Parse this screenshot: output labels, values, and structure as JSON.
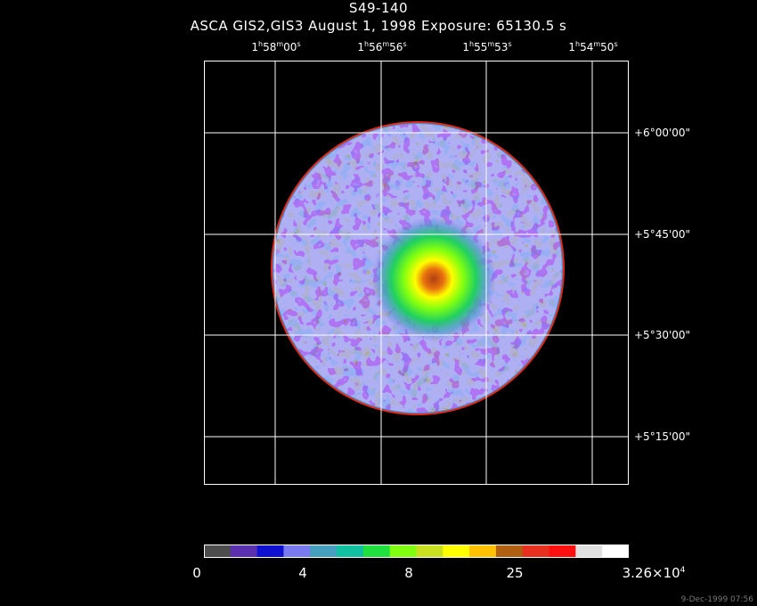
{
  "title": "S49-140",
  "subtitle": "ASCA GIS2,GIS3 August 1, 1998 Exposure: 65130.5 s",
  "ra_labels": [
    {
      "h": "1",
      "hs": "h",
      "m": "58",
      "ms": "m",
      "s": "00",
      "ss": "s"
    },
    {
      "h": "1",
      "hs": "h",
      "m": "56",
      "ms": "m",
      "s": "56",
      "ss": "s"
    },
    {
      "h": "1",
      "hs": "h",
      "m": "55",
      "ms": "m",
      "s": "53",
      "ss": "s"
    },
    {
      "h": "1",
      "hs": "h",
      "m": "54",
      "ms": "m",
      "s": "50",
      "ss": "s"
    }
  ],
  "dec_labels": [
    "+6°00'00\"",
    "+5°45'00\"",
    "+5°30'00\"",
    "+5°15'00\""
  ],
  "colorbar": {
    "colors": [
      "#4d4d4d",
      "#5a30b0",
      "#1010d0",
      "#7a7af0",
      "#45a0c0",
      "#10c0a0",
      "#20e040",
      "#80ff10",
      "#c8e020",
      "#ffff00",
      "#ffc000",
      "#b06010",
      "#e83020",
      "#ff1010",
      "#e0e0e0",
      "#ffffff"
    ],
    "labels": [
      "0",
      "4",
      "8",
      "25"
    ],
    "max_base": "3.26×10",
    "max_exp": "4"
  },
  "footer": "9-Dec-1999 07:56"
}
